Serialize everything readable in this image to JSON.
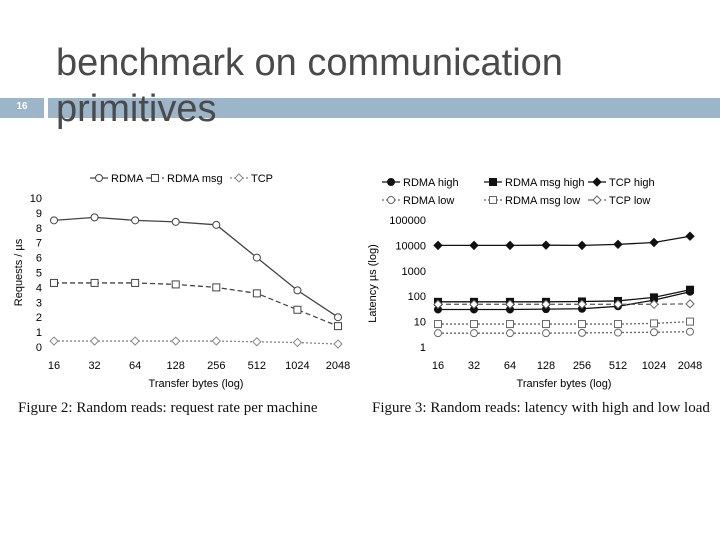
{
  "slide": {
    "number": "16",
    "title_line1": "benchmark on communication",
    "title_line2": "primitives",
    "accent_color": "#9cb5c9"
  },
  "chart_data": [
    {
      "type": "line",
      "caption": "Figure 2: Random reads: request rate per machine",
      "xlabel": "Transfer bytes (log)",
      "ylabel": "Requests / µs",
      "categories": [
        "16",
        "32",
        "64",
        "128",
        "256",
        "512",
        "1024",
        "2048"
      ],
      "yticks": [
        "0",
        "1",
        "2",
        "3",
        "4",
        "5",
        "6",
        "7",
        "8",
        "9",
        "10"
      ],
      "ylim": [
        0,
        10
      ],
      "legend_position": "top",
      "series": [
        {
          "name": "RDMA",
          "values": [
            8.5,
            8.7,
            8.5,
            8.4,
            8.2,
            6.0,
            3.8,
            2.0
          ],
          "marker": "circle",
          "line": "solid",
          "color": "#444444"
        },
        {
          "name": "RDMA msg",
          "values": [
            4.3,
            4.3,
            4.3,
            4.2,
            4.0,
            3.6,
            2.5,
            1.4
          ],
          "marker": "square",
          "line": "dashed",
          "color": "#444444"
        },
        {
          "name": "TCP",
          "values": [
            0.4,
            0.4,
            0.4,
            0.4,
            0.4,
            0.35,
            0.3,
            0.2
          ],
          "marker": "diamond",
          "line": "dotted",
          "color": "#888888"
        }
      ]
    },
    {
      "type": "line",
      "caption": "Figure 3: Random reads: latency with high and low load",
      "xlabel": "Transfer bytes (log)",
      "ylabel": "Latency µs (log)",
      "categories": [
        "16",
        "32",
        "64",
        "128",
        "256",
        "512",
        "1024",
        "2048"
      ],
      "yticks": [
        "1",
        "10",
        "100",
        "1000",
        "10000",
        "100000"
      ],
      "yscale": "log",
      "ylim": [
        1,
        100000
      ],
      "legend_position": "top",
      "series": [
        {
          "name": "RDMA high",
          "values": [
            30,
            30,
            30,
            31,
            32,
            40,
            70,
            150
          ],
          "marker": "filled-circle",
          "line": "solid",
          "color": "#111111"
        },
        {
          "name": "RDMA msg high",
          "values": [
            60,
            60,
            60,
            60,
            62,
            65,
            90,
            180
          ],
          "marker": "filled-square",
          "line": "solid",
          "color": "#111111"
        },
        {
          "name": "TCP high",
          "values": [
            10000,
            10000,
            10000,
            10200,
            10000,
            11000,
            13000,
            23000
          ],
          "marker": "filled-diamond",
          "line": "solid",
          "color": "#111111"
        },
        {
          "name": "RDMA low",
          "values": [
            3.5,
            3.5,
            3.5,
            3.5,
            3.6,
            3.7,
            3.8,
            4.0
          ],
          "marker": "circle",
          "line": "dotted",
          "color": "#666666"
        },
        {
          "name": "RDMA msg low",
          "values": [
            8,
            8,
            8,
            8,
            8,
            8,
            8.5,
            10
          ],
          "marker": "square",
          "line": "dotted",
          "color": "#666666"
        },
        {
          "name": "TCP low",
          "values": [
            48,
            48,
            48,
            48,
            48,
            48,
            48,
            50
          ],
          "marker": "diamond",
          "line": "dashed",
          "color": "#666666"
        }
      ]
    }
  ]
}
